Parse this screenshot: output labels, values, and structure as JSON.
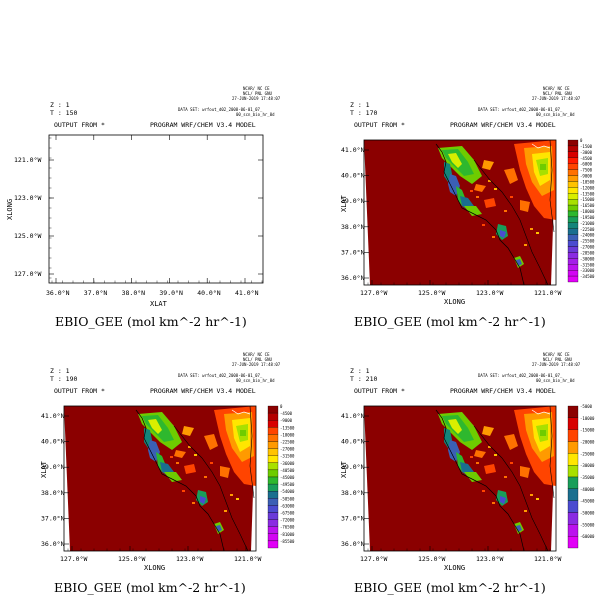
{
  "common": {
    "z_label": "Z : 1",
    "output_from": "OUTPUT FROM *",
    "program": "PROGRAM WRF/CHEM V3.4 MODEL",
    "big_title": "EBIO_GEE (mol km^-2 hr^-1)",
    "meta_lines": [
      "NCAR/ NC CE ",
      "NCL/ PNL GNU",
      "27-JUN-2019 17:48:07"
    ],
    "data_set": "DATA SET: wrfout_d02_2008-06-01_07_",
    "data_set2": "00_scn_bio_hr_0d"
  },
  "chart_data": [
    {
      "type": "heatmap",
      "panel": "top-left",
      "time_label": "T : 150",
      "empty": true,
      "xlabel": "XLAT",
      "ylabel": "XLONG",
      "x_ticks": [
        "36.0°N",
        "37.0°N",
        "38.0°N",
        "39.0°N",
        "40.0°N",
        "41.0°N"
      ],
      "y_ticks": [
        "121.0°W",
        "123.0°W",
        "125.0°W",
        "127.0°W"
      ]
    },
    {
      "type": "heatmap",
      "panel": "top-right",
      "time_label": "T : 170",
      "xlabel": "XLONG",
      "ylabel": "XLAT",
      "x_ticks": [
        "127.0°W",
        "125.0°W",
        "123.0°W",
        "121.0°W"
      ],
      "y_ticks": [
        "41.0°N",
        "40.0°N",
        "39.0°N",
        "38.0°N",
        "37.0°N",
        "36.0°N"
      ],
      "colorbar_labels": [
        "0",
        "-1500",
        "-3000",
        "-4500",
        "-6000",
        "-7500",
        "-9000",
        "-10500",
        "-12000",
        "-13500",
        "-15000",
        "-16500",
        "-18000",
        "-19500",
        "-21000",
        "-22500",
        "-24000",
        "-25500",
        "-27000",
        "-28500",
        "-30000",
        "-31500",
        "-33000",
        "-34500"
      ]
    },
    {
      "type": "heatmap",
      "panel": "bottom-left",
      "time_label": "T : 190",
      "xlabel": "XLONG",
      "ylabel": "XLAT",
      "x_ticks": [
        "127.0°W",
        "125.0°W",
        "123.0°W",
        "121.0°W"
      ],
      "y_ticks": [
        "41.0°N",
        "40.0°N",
        "39.0°N",
        "38.0°N",
        "37.0°N",
        "36.0°N"
      ],
      "colorbar_labels": [
        "0",
        "-4500",
        "-9000",
        "-13500",
        "-18000",
        "-22500",
        "-27000",
        "-31500",
        "-36000",
        "-40500",
        "-45000",
        "-49500",
        "-54000",
        "-58500",
        "-63000",
        "-67500",
        "-72000",
        "-76500",
        "-81000",
        "-85500"
      ]
    },
    {
      "type": "heatmap",
      "panel": "bottom-right",
      "time_label": "T : 210",
      "xlabel": "XLONG",
      "ylabel": "XLAT",
      "x_ticks": [
        "127.0°W",
        "125.0°W",
        "123.0°W",
        "121.0°W"
      ],
      "y_ticks": [
        "41.0°N",
        "40.0°N",
        "39.0°N",
        "38.0°N",
        "37.0°N",
        "36.0°N"
      ],
      "colorbar_labels": [
        "-5000",
        "-10000",
        "-15000",
        "-20000",
        "-25000",
        "-30000",
        "-35000",
        "-40000",
        "-45000",
        "-50000",
        "-55000",
        "-60000"
      ]
    }
  ],
  "colors": {
    "background_field": "#8b0000",
    "palette": [
      "#8b0000",
      "#b40000",
      "#d80000",
      "#ff1a00",
      "#ff4400",
      "#ff7000",
      "#ff9a00",
      "#ffc300",
      "#ffe600",
      "#d8ee00",
      "#a8e000",
      "#6ecc00",
      "#2eb82e",
      "#199e5a",
      "#13857a",
      "#1a6f8f",
      "#3b5fb5",
      "#4b4bd0",
      "#6a3ad8",
      "#8a2be2",
      "#a41fe8",
      "#bb12ee",
      "#d205f3",
      "#e100f7"
    ]
  }
}
